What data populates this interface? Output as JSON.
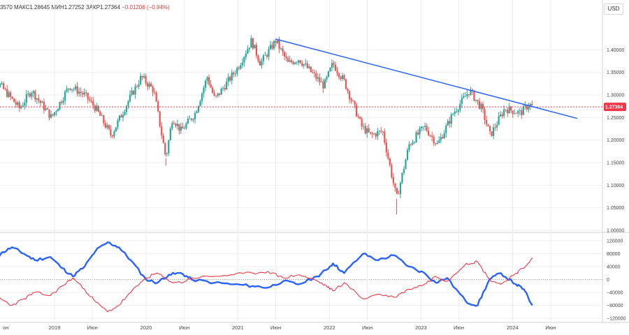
{
  "header": {
    "prefix": "3570",
    "high": "МАКС1.28645",
    "low": "МИН1.27252",
    "close": "ЗАКР1.27364",
    "change": "−0.01206 (−0.94%)"
  },
  "currency_button": "USD",
  "last_price_label": "1.27364",
  "colors": {
    "up": "#26a69a",
    "down": "#ef5350",
    "trendline": "#2962ff",
    "series_blue": "#2962ff",
    "series_red": "#f23645",
    "price_badge": "#f23645",
    "grid": "#eeeeee"
  },
  "chart_data": [
    {
      "type": "candlestick",
      "period": "weekly",
      "x_axis_labels": [
        "он",
        "2019",
        "Июн",
        "2020",
        "Июн",
        "2021",
        "Июн",
        "2022",
        "Июн",
        "2023",
        "Июн",
        "2024",
        "Июн"
      ],
      "y_axis_labels": [
        "1.40000",
        "1.35000",
        "1.30000",
        "1.25000",
        "1.20000",
        "1.15000",
        "1.10000",
        "1.05000",
        "1.00000"
      ],
      "ylim": [
        1.0,
        1.43
      ],
      "last_price": 1.27364,
      "close_path": [
        {
          "d": "2018-04-01",
          "v": 1.34
        },
        {
          "d": "2018-06-01",
          "v": 1.32
        },
        {
          "d": "2018-08-15",
          "v": 1.27
        },
        {
          "d": "2018-10-01",
          "v": 1.31
        },
        {
          "d": "2018-12-20",
          "v": 1.25
        },
        {
          "d": "2019-03-01",
          "v": 1.32
        },
        {
          "d": "2019-05-01",
          "v": 1.3
        },
        {
          "d": "2019-06-15",
          "v": 1.27
        },
        {
          "d": "2019-08-15",
          "v": 1.21
        },
        {
          "d": "2019-10-25",
          "v": 1.29
        },
        {
          "d": "2019-12-13",
          "v": 1.34
        },
        {
          "d": "2020-02-01",
          "v": 1.31
        },
        {
          "d": "2020-03-20",
          "v": 1.16
        },
        {
          "d": "2020-04-15",
          "v": 1.25
        },
        {
          "d": "2020-05-20",
          "v": 1.22
        },
        {
          "d": "2020-07-15",
          "v": 1.26
        },
        {
          "d": "2020-09-01",
          "v": 1.34
        },
        {
          "d": "2020-10-01",
          "v": 1.29
        },
        {
          "d": "2020-12-31",
          "v": 1.36
        },
        {
          "d": "2021-02-24",
          "v": 1.42
        },
        {
          "d": "2021-04-01",
          "v": 1.37
        },
        {
          "d": "2021-06-01",
          "v": 1.42
        },
        {
          "d": "2021-07-20",
          "v": 1.37
        },
        {
          "d": "2021-09-01",
          "v": 1.38
        },
        {
          "d": "2021-12-10",
          "v": 1.32
        },
        {
          "d": "2022-01-15",
          "v": 1.37
        },
        {
          "d": "2022-03-01",
          "v": 1.33
        },
        {
          "d": "2022-05-10",
          "v": 1.23
        },
        {
          "d": "2022-06-15",
          "v": 1.21
        },
        {
          "d": "2022-08-01",
          "v": 1.22
        },
        {
          "d": "2022-09-26",
          "v": 1.07
        },
        {
          "d": "2022-11-15",
          "v": 1.19
        },
        {
          "d": "2023-01-15",
          "v": 1.23
        },
        {
          "d": "2023-03-08",
          "v": 1.19
        },
        {
          "d": "2023-05-10",
          "v": 1.26
        },
        {
          "d": "2023-07-14",
          "v": 1.31
        },
        {
          "d": "2023-08-31",
          "v": 1.27
        },
        {
          "d": "2023-10-04",
          "v": 1.21
        },
        {
          "d": "2023-12-01",
          "v": 1.27
        },
        {
          "d": "2024-02-01",
          "v": 1.26
        },
        {
          "d": "2024-03-08",
          "v": 1.28
        },
        {
          "d": "2024-03-20",
          "v": 1.27364
        }
      ],
      "trendline": {
        "from": {
          "d": "2021-05-31",
          "v": 1.424
        },
        "to": {
          "d": "2024-09-15",
          "v": 1.248
        }
      }
    },
    {
      "type": "line",
      "y_axis_labels": [
        "120000",
        "80000",
        "40000",
        "0",
        "−40000",
        "−80000",
        "−120000"
      ],
      "ylim": [
        -120000,
        120000
      ],
      "series": [
        {
          "color": "blue",
          "points": [
            {
              "d": "2018-04-01",
              "v": 0
            },
            {
              "d": "2018-06-01",
              "v": 80000
            },
            {
              "d": "2018-07-15",
              "v": 100000
            },
            {
              "d": "2018-09-01",
              "v": 80000
            },
            {
              "d": "2018-10-15",
              "v": 60000
            },
            {
              "d": "2018-12-15",
              "v": 70000
            },
            {
              "d": "2019-02-01",
              "v": 35000
            },
            {
              "d": "2019-03-15",
              "v": 10000
            },
            {
              "d": "2019-05-01",
              "v": 40000
            },
            {
              "d": "2019-06-15",
              "v": 90000
            },
            {
              "d": "2019-08-01",
              "v": 115000
            },
            {
              "d": "2019-09-15",
              "v": 100000
            },
            {
              "d": "2019-11-01",
              "v": 60000
            },
            {
              "d": "2020-01-01",
              "v": 0
            },
            {
              "d": "2020-02-15",
              "v": -10000
            },
            {
              "d": "2020-04-01",
              "v": 15000
            },
            {
              "d": "2020-05-20",
              "v": 20000
            },
            {
              "d": "2020-07-01",
              "v": 0
            },
            {
              "d": "2020-10-01",
              "v": -10000
            },
            {
              "d": "2020-12-15",
              "v": -15000
            },
            {
              "d": "2021-03-01",
              "v": -20000
            },
            {
              "d": "2021-05-01",
              "v": -25000
            },
            {
              "d": "2021-07-01",
              "v": -5000
            },
            {
              "d": "2021-09-01",
              "v": -15000
            },
            {
              "d": "2021-11-15",
              "v": 10000
            },
            {
              "d": "2021-12-20",
              "v": 30000
            },
            {
              "d": "2022-01-15",
              "v": 50000
            },
            {
              "d": "2022-03-01",
              "v": 20000
            },
            {
              "d": "2022-05-15",
              "v": 80000
            },
            {
              "d": "2022-07-15",
              "v": 60000
            },
            {
              "d": "2022-09-15",
              "v": 75000
            },
            {
              "d": "2022-11-15",
              "v": 40000
            },
            {
              "d": "2023-01-15",
              "v": 20000
            },
            {
              "d": "2023-03-01",
              "v": -10000
            },
            {
              "d": "2023-04-15",
              "v": 5000
            },
            {
              "d": "2023-07-01",
              "v": -70000
            },
            {
              "d": "2023-08-15",
              "v": -80000
            },
            {
              "d": "2023-10-01",
              "v": 0
            },
            {
              "d": "2023-11-15",
              "v": 20000
            },
            {
              "d": "2024-01-15",
              "v": -15000
            },
            {
              "d": "2024-02-15",
              "v": -30000
            },
            {
              "d": "2024-03-20",
              "v": -80000
            }
          ]
        },
        {
          "color": "red",
          "points": [
            {
              "d": "2018-04-01",
              "v": 0
            },
            {
              "d": "2018-06-01",
              "v": -60000
            },
            {
              "d": "2018-07-15",
              "v": -80000
            },
            {
              "d": "2018-09-01",
              "v": -60000
            },
            {
              "d": "2018-10-15",
              "v": -40000
            },
            {
              "d": "2018-12-15",
              "v": -50000
            },
            {
              "d": "2019-02-01",
              "v": -20000
            },
            {
              "d": "2019-03-15",
              "v": 5000
            },
            {
              "d": "2019-05-01",
              "v": -30000
            },
            {
              "d": "2019-06-15",
              "v": -70000
            },
            {
              "d": "2019-08-01",
              "v": -100000
            },
            {
              "d": "2019-09-15",
              "v": -80000
            },
            {
              "d": "2019-11-01",
              "v": -40000
            },
            {
              "d": "2020-01-01",
              "v": 5000
            },
            {
              "d": "2020-02-15",
              "v": 20000
            },
            {
              "d": "2020-04-01",
              "v": -5000
            },
            {
              "d": "2020-05-20",
              "v": -10000
            },
            {
              "d": "2020-07-01",
              "v": 5000
            },
            {
              "d": "2020-10-01",
              "v": 10000
            },
            {
              "d": "2020-12-15",
              "v": 15000
            },
            {
              "d": "2021-03-01",
              "v": 20000
            },
            {
              "d": "2021-05-01",
              "v": 25000
            },
            {
              "d": "2021-07-01",
              "v": 5000
            },
            {
              "d": "2021-09-01",
              "v": 15000
            },
            {
              "d": "2021-11-15",
              "v": -5000
            },
            {
              "d": "2021-12-20",
              "v": -20000
            },
            {
              "d": "2022-01-15",
              "v": -35000
            },
            {
              "d": "2022-03-01",
              "v": -10000
            },
            {
              "d": "2022-05-15",
              "v": -60000
            },
            {
              "d": "2022-07-15",
              "v": -45000
            },
            {
              "d": "2022-09-15",
              "v": -55000
            },
            {
              "d": "2022-11-15",
              "v": -30000
            },
            {
              "d": "2023-01-15",
              "v": -15000
            },
            {
              "d": "2023-03-01",
              "v": 10000
            },
            {
              "d": "2023-04-15",
              "v": -5000
            },
            {
              "d": "2023-07-01",
              "v": 50000
            },
            {
              "d": "2023-08-15",
              "v": 55000
            },
            {
              "d": "2023-10-01",
              "v": 0
            },
            {
              "d": "2023-11-15",
              "v": -15000
            },
            {
              "d": "2024-01-15",
              "v": 20000
            },
            {
              "d": "2024-02-15",
              "v": 35000
            },
            {
              "d": "2024-03-20",
              "v": 68000
            }
          ]
        }
      ]
    }
  ]
}
